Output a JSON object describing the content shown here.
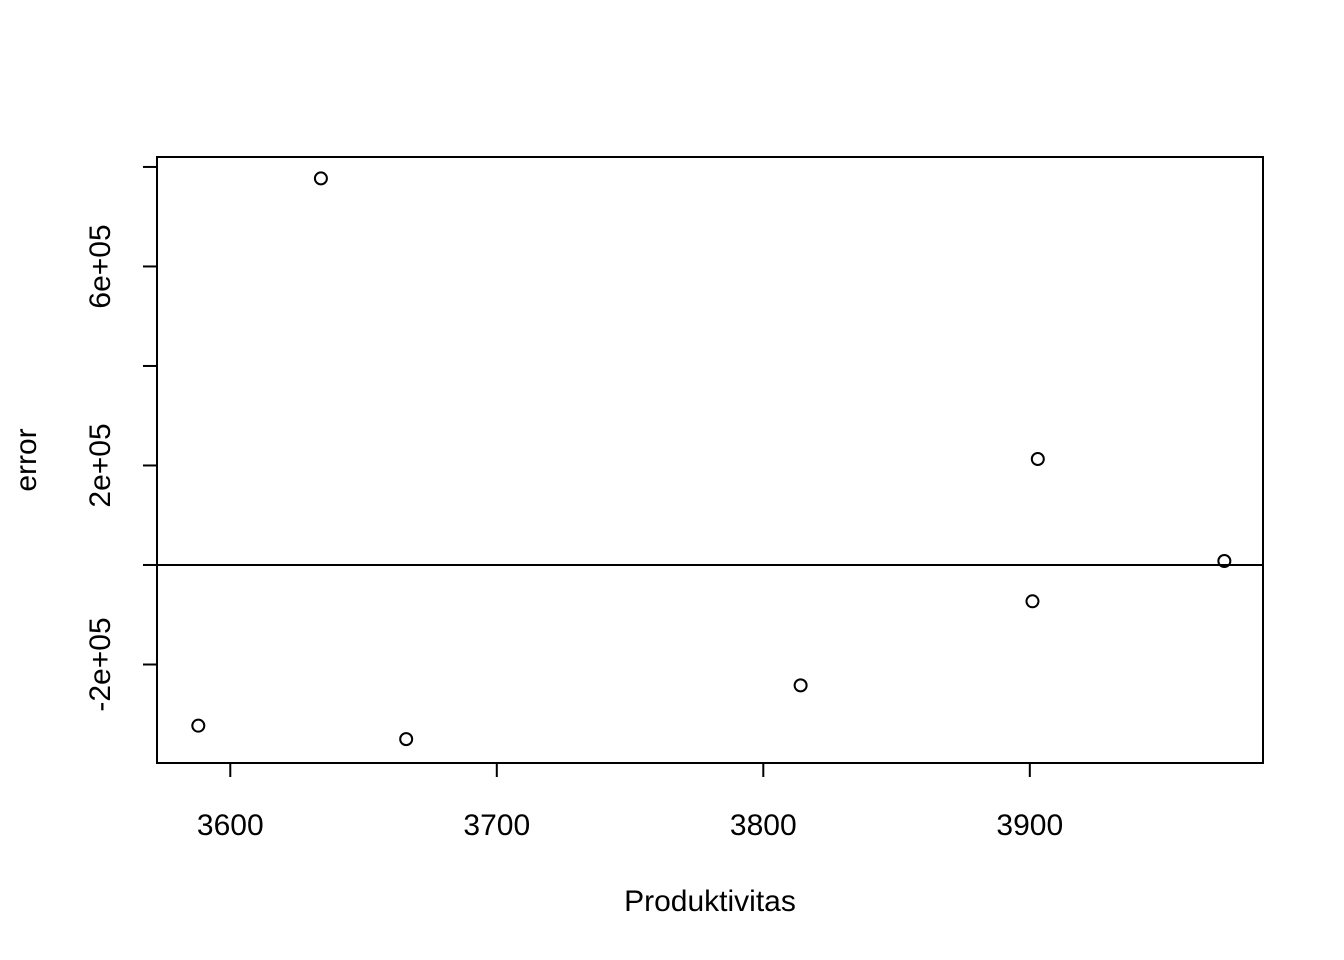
{
  "chart_data": {
    "type": "scatter",
    "title": "",
    "xlabel": "Produktivitas",
    "ylabel": "error",
    "xlim": [
      3572.5,
      3987.5
    ],
    "ylim": [
      -398000,
      820000
    ],
    "x_ticks": [
      3600,
      3700,
      3800,
      3900
    ],
    "x_tick_labels": [
      "3600",
      "3700",
      "3800",
      "3900"
    ],
    "y_ticks": [
      -200000,
      0,
      200000,
      400000,
      600000,
      800000
    ],
    "y_tick_labels": [
      "-2e+05",
      "",
      "2e+05",
      "",
      "6e+05",
      ""
    ],
    "reference_line_y": 0,
    "grid": false,
    "legend": "none",
    "points": [
      {
        "x": 3588,
        "y": -323000
      },
      {
        "x": 3634,
        "y": 777000
      },
      {
        "x": 3666,
        "y": -350000
      },
      {
        "x": 3814,
        "y": -242000
      },
      {
        "x": 3901,
        "y": -73000
      },
      {
        "x": 3903,
        "y": 213000
      },
      {
        "x": 3973,
        "y": 8000
      }
    ]
  }
}
